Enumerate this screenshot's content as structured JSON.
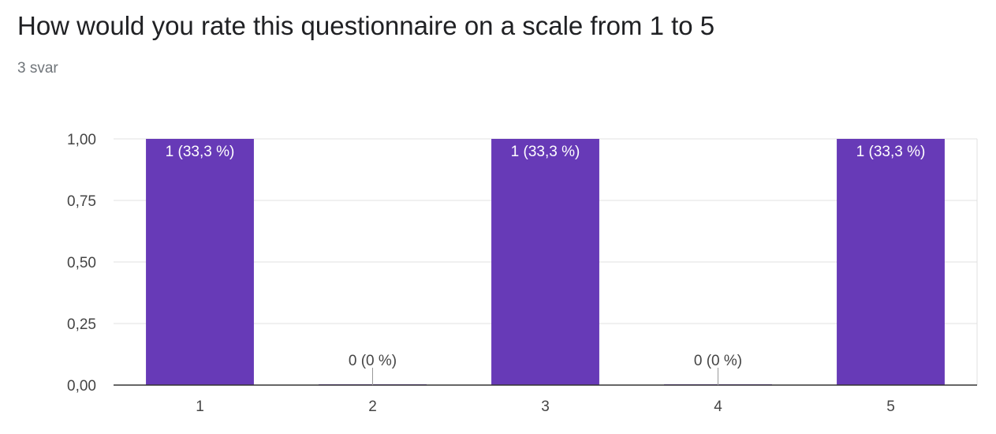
{
  "question": {
    "title": "How would you rate this questionnaire on a scale from 1 to 5",
    "response_count": "3 svar"
  },
  "colors": {
    "bar": "#673ab7",
    "gridline": "#e0e0e0",
    "axis": "#333333",
    "text": "#444444"
  },
  "chart_data": {
    "type": "bar",
    "title": "",
    "xlabel": "",
    "ylabel": "",
    "categories": [
      "1",
      "2",
      "3",
      "4",
      "5"
    ],
    "values": [
      1,
      0,
      1,
      0,
      1
    ],
    "data_labels": [
      "1 (33,3 %)",
      "0 (0 %)",
      "1 (33,3 %)",
      "0 (0 %)",
      "1 (33,3 %)"
    ],
    "ylim": [
      0,
      1
    ],
    "yticks": [
      0,
      0.25,
      0.5,
      0.75,
      1
    ],
    "ytick_labels": [
      "0,00",
      "0,25",
      "0,50",
      "0,75",
      "1,00"
    ],
    "grid": true,
    "legend": "none"
  }
}
